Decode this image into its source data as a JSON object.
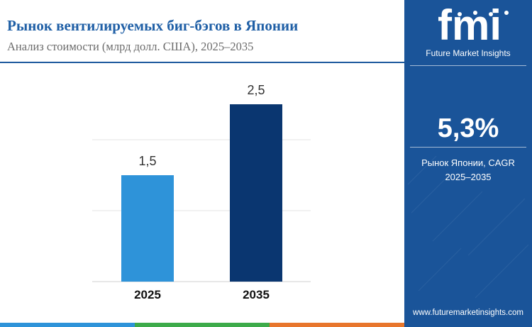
{
  "header": {
    "title": "Рынок вентилируемых биг-бэгов в Японии",
    "subtitle": "Анализ стоимости (млрд долл. США), 2025–2035"
  },
  "chart_data": {
    "type": "bar",
    "categories": [
      "2025",
      "2035"
    ],
    "values": [
      1.5,
      2.5
    ],
    "value_labels": [
      "1,5",
      "2,5"
    ],
    "bar_colors": [
      "#2e93d9",
      "#0a3670"
    ],
    "ylim": [
      0,
      3
    ],
    "grid": true,
    "title": "",
    "xlabel": "",
    "ylabel": ""
  },
  "panel": {
    "logo_text": "fmi",
    "logo_tagline": "Future Market Insights",
    "cagr_value": "5,3%",
    "cagr_label_line1": "Рынок Японии, CAGR",
    "cagr_label_line2": "2025–2035",
    "website": "www.futuremarketinsights.com",
    "background_color": "#1a5499"
  },
  "footer_colors": [
    "#2e93d9",
    "#3dab4a",
    "#e8762c",
    "#0a3670"
  ]
}
